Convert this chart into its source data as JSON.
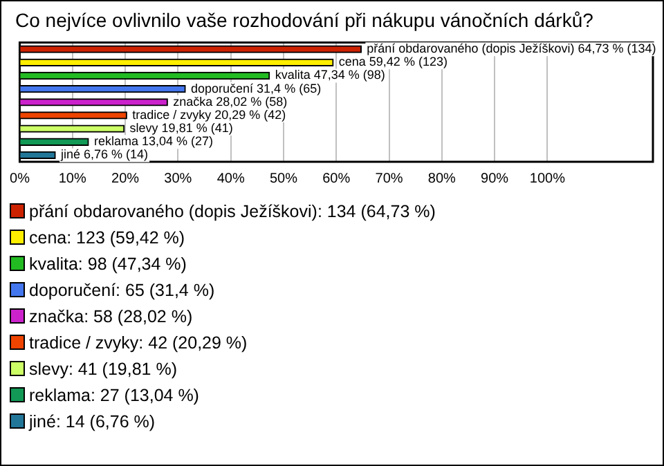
{
  "chart_data": {
    "type": "bar",
    "orientation": "horizontal",
    "title": "Co nejvíce ovlivnilo vaše rozhodování při nákupu vánočních dárků?",
    "categories": [
      null,
      null,
      null,
      null,
      null,
      null,
      null,
      null,
      null
    ],
    "values": [
      64.73,
      59.42,
      47.34,
      31.4,
      28.02,
      20.29,
      19.81,
      13.04,
      6.76
    ],
    "colors": [
      "#cc2200",
      "#ffee00",
      "#22bb22",
      "#4477ee",
      "#cc22cc",
      "#ee4400",
      "#ccff66",
      "#119955",
      "#227799"
    ],
    "value_labels": [
      "přání obdarovaného (dopis Ježíškovi) 64,73 % (134)",
      "cena 59,42 % (123)",
      "kvalita 47,34 % (98)",
      "doporučení 31,4 % (65)",
      "značka 28,02 % (58)",
      "tradice / zvyky 20,29 % (42)",
      "slevy 19,81 % (41)",
      "reklama 13,04 % (27)",
      "jiné 6,76 % (14)"
    ],
    "annotations": [
      "přání obdarovaného (dopis Ježíškovi): 134 (64,73 %)",
      "cena: 123 (59,42 %)",
      "kvalita: 98 (47,34 %)",
      "doporučení: 65 (31,4 %)",
      "značka: 58 (28,02 %)",
      "tradice / zvyky: 42 (20,29 %)",
      "slevy: 41 (19,81 %)",
      "reklama: 27 (13,04 %)",
      "jiné: 14 (6,76 %)"
    ],
    "xlim": [
      0,
      120
    ],
    "xticks": [
      {
        "value": 0,
        "label": "0%"
      },
      {
        "value": 10,
        "label": "10%"
      },
      {
        "value": 20,
        "label": "20%"
      },
      {
        "value": 30,
        "label": "30%"
      },
      {
        "value": 40,
        "label": "40%"
      },
      {
        "value": 50,
        "label": "50%"
      },
      {
        "value": 60,
        "label": "60%"
      },
      {
        "value": 70,
        "label": "70%"
      },
      {
        "value": 80,
        "label": "80%"
      },
      {
        "value": 90,
        "label": "90%"
      },
      {
        "value": 100,
        "label": "100%"
      }
    ],
    "grid": "x",
    "tick_labels": "x"
  }
}
